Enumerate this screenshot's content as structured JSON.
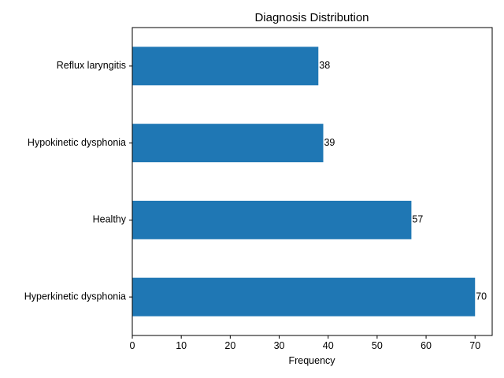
{
  "chart_data": {
    "type": "bar",
    "orientation": "horizontal",
    "title": "Diagnosis Distribution",
    "xlabel": "Frequency",
    "ylabel": "",
    "categories": [
      "Hyperkinetic dysphonia",
      "Healthy",
      "Hypokinetic dysphonia",
      "Reflux laryngitis"
    ],
    "values": [
      70,
      57,
      39,
      38
    ],
    "xlim": [
      0,
      73.5
    ],
    "xticks": [
      0,
      10,
      20,
      30,
      40,
      50,
      60,
      70
    ],
    "bar_color": "#1f77b4",
    "grid": false,
    "legend": "none"
  }
}
